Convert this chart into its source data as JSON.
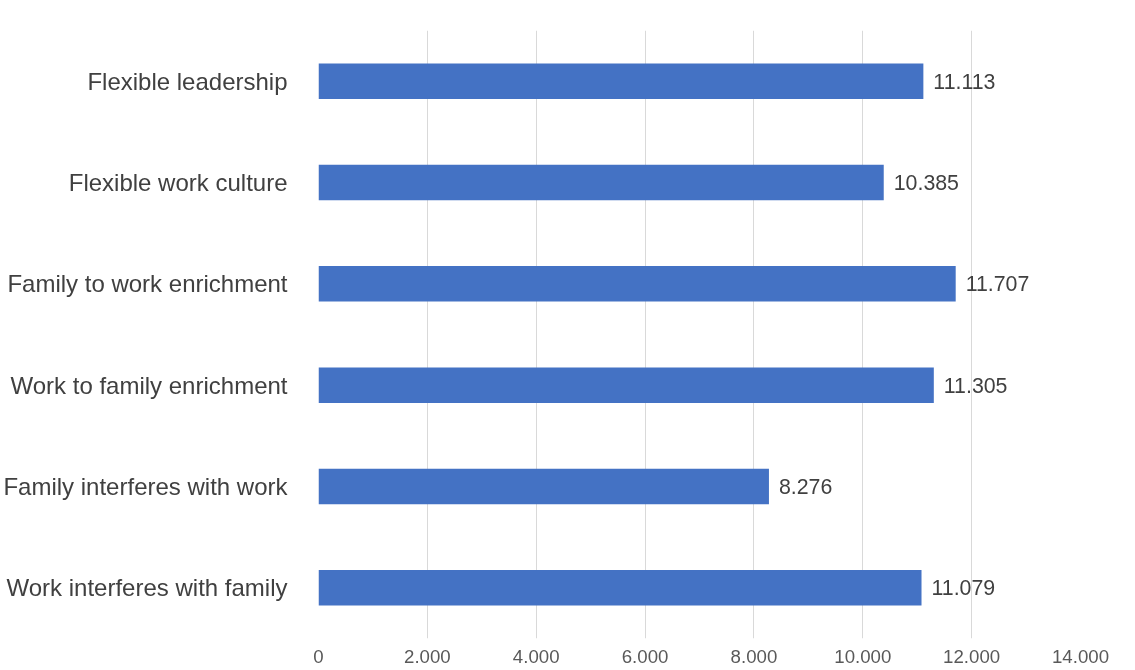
{
  "chart_data": {
    "type": "bar",
    "orientation": "horizontal",
    "categories": [
      "Flexible leadership",
      "Flexible work culture",
      "Family to work enrichment",
      "Work to family enrichment",
      "Family interferes with work",
      "Work interferes with family"
    ],
    "values": [
      11113,
      10385,
      11707,
      11305,
      8276,
      11079
    ],
    "value_labels": [
      "11.113",
      "10.385",
      "11.707",
      "11.305",
      "8.276",
      "11.079"
    ],
    "color": "#4472c4",
    "xlim": [
      0,
      14000
    ],
    "xticks": [
      0,
      {
        "value": 2000,
        "label": "2.000"
      },
      {
        "value": 4000,
        "label": "4.000"
      },
      {
        "value": 6000,
        "label": "6.000"
      },
      {
        "value": 8000,
        "label": "8.000"
      },
      {
        "value": 10000,
        "label": "10.000"
      },
      {
        "value": 12000,
        "label": "12.000"
      },
      {
        "value": 14000,
        "label": "14.000"
      }
    ],
    "grid": "x"
  }
}
